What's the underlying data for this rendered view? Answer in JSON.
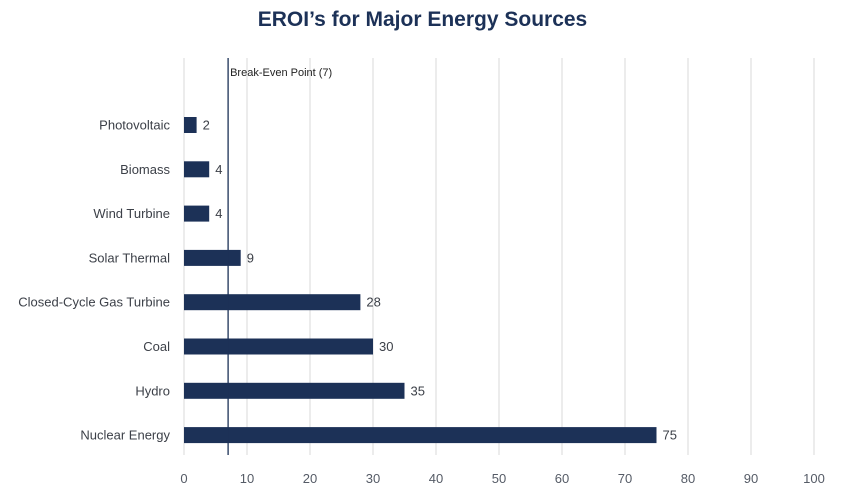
{
  "chart_data": {
    "type": "bar",
    "orientation": "horizontal",
    "title": "EROI’s for Major Energy Sources",
    "categories": [
      "Photovoltaic",
      "Biomass",
      "Wind Turbine",
      "Solar Thermal",
      "Closed-Cycle Gas Turbine",
      "Coal",
      "Hydro",
      "Nuclear Energy"
    ],
    "values": [
      2,
      4,
      4,
      9,
      28,
      30,
      35,
      75
    ],
    "xlim": [
      0,
      100
    ],
    "xticks": [
      0,
      10,
      20,
      30,
      40,
      50,
      60,
      70,
      80,
      90,
      100
    ],
    "grid": "vertical",
    "reference_line": {
      "value": 7,
      "label": "Break-Even Point (7)"
    },
    "colors": {
      "bar": "#1c3157",
      "grid": "#d9d9d9",
      "ref_line": "#1c3157",
      "title": "#1c3157"
    }
  }
}
